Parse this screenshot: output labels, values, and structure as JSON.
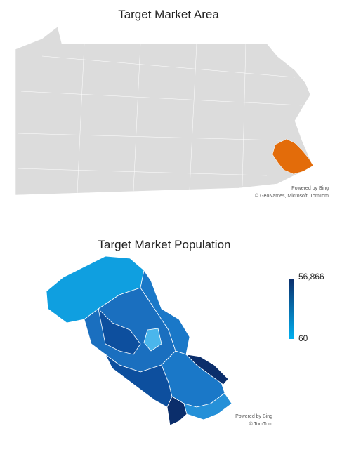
{
  "top_map": {
    "title": "Target Market Area",
    "attribution": [
      "Powered by Bing",
      "© GeoNames, Microsoft, TomTom"
    ]
  },
  "bottom_map": {
    "title": "Target Market Population",
    "attribution": [
      "Powered by Bing",
      "© TomTom"
    ],
    "legend": {
      "max_label": "56,866",
      "min_label": "60"
    }
  }
}
